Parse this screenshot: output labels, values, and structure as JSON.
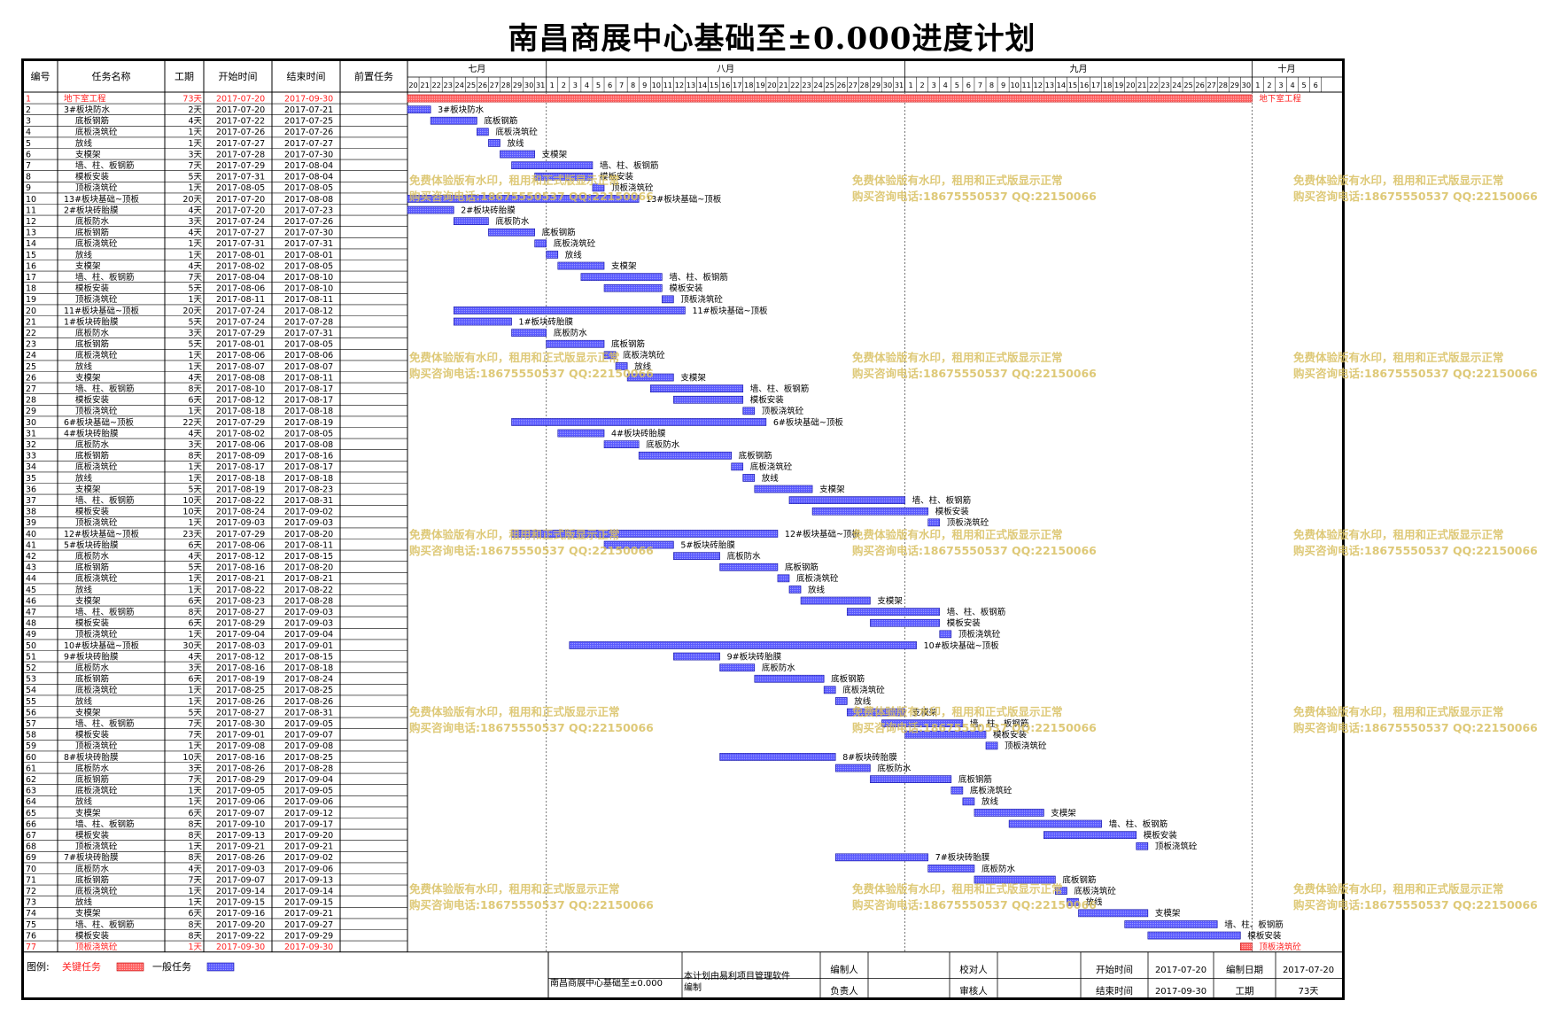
{
  "title": "南昌商展中心基础至±0.000进度计划",
  "columns": {
    "id": "编号",
    "name": "任务名称",
    "dur": "工期",
    "start": "开始时间",
    "end": "结束时间",
    "pred": "前置任务"
  },
  "months": [
    {
      "label": "七月",
      "start": "2017-07-20",
      "end": "2017-07-31"
    },
    {
      "label": "八月",
      "start": "2017-08-01",
      "end": "2017-08-31"
    },
    {
      "label": "九月",
      "start": "2017-09-01",
      "end": "2017-09-30"
    },
    {
      "label": "十月",
      "start": "2017-10-01",
      "end": "2017-10-06"
    }
  ],
  "watermark": [
    "免费体验版有水印，租用和正式版显示正常",
    "购买咨询电话:18675550537 QQ:22150066"
  ],
  "legend": {
    "label": "图例:",
    "critical": "关键任务",
    "normal": "一般任务",
    "critical_color": "#ff6060",
    "normal_color": "#5a5aff"
  },
  "footer": {
    "project": "南昌商展中心基础至±0.000",
    "note": "本计划由易利项目管理软件编制",
    "compiler": "编制人",
    "checker": "校对人",
    "owner": "负责人",
    "reviewer": "审核人",
    "start_label": "开始时间",
    "start": "2017-07-20",
    "end_label": "结束时间",
    "end": "2017-09-30",
    "date_label": "编制日期",
    "date": "2017-07-20",
    "dur_label": "工期",
    "dur": "73天"
  },
  "chart_data": {
    "type": "gantt",
    "x_range": [
      "2017-07-20",
      "2017-10-06"
    ],
    "tasks": [
      {
        "id": 1,
        "name": "地下室工程",
        "indent": 1,
        "dur": "73天",
        "start": "2017-07-20",
        "end": "2017-09-30",
        "critical": true
      },
      {
        "id": 2,
        "name": "3#板块防水",
        "indent": 2,
        "dur": "2天",
        "start": "2017-07-20",
        "end": "2017-07-21"
      },
      {
        "id": 3,
        "name": "底板钢筋",
        "indent": 3,
        "dur": "4天",
        "start": "2017-07-22",
        "end": "2017-07-25"
      },
      {
        "id": 4,
        "name": "底板浇筑砼",
        "indent": 3,
        "dur": "1天",
        "start": "2017-07-26",
        "end": "2017-07-26"
      },
      {
        "id": 5,
        "name": "放线",
        "indent": 3,
        "dur": "1天",
        "start": "2017-07-27",
        "end": "2017-07-27"
      },
      {
        "id": 6,
        "name": "支模架",
        "indent": 3,
        "dur": "3天",
        "start": "2017-07-28",
        "end": "2017-07-30"
      },
      {
        "id": 7,
        "name": "墙、柱、板钢筋",
        "indent": 3,
        "dur": "7天",
        "start": "2017-07-29",
        "end": "2017-08-04"
      },
      {
        "id": 8,
        "name": "模板安装",
        "indent": 3,
        "dur": "5天",
        "start": "2017-07-31",
        "end": "2017-08-04"
      },
      {
        "id": 9,
        "name": "顶板浇筑砼",
        "indent": 3,
        "dur": "1天",
        "start": "2017-08-05",
        "end": "2017-08-05"
      },
      {
        "id": 10,
        "name": "13#板块基础~顶板",
        "indent": 1,
        "dur": "20天",
        "start": "2017-07-20",
        "end": "2017-08-08"
      },
      {
        "id": 11,
        "name": "2#板块砖胎膜",
        "indent": 2,
        "dur": "4天",
        "start": "2017-07-20",
        "end": "2017-07-23"
      },
      {
        "id": 12,
        "name": "底板防水",
        "indent": 3,
        "dur": "3天",
        "start": "2017-07-24",
        "end": "2017-07-26"
      },
      {
        "id": 13,
        "name": "底板钢筋",
        "indent": 3,
        "dur": "4天",
        "start": "2017-07-27",
        "end": "2017-07-30"
      },
      {
        "id": 14,
        "name": "底板浇筑砼",
        "indent": 3,
        "dur": "1天",
        "start": "2017-07-31",
        "end": "2017-07-31"
      },
      {
        "id": 15,
        "name": "放线",
        "indent": 3,
        "dur": "1天",
        "start": "2017-08-01",
        "end": "2017-08-01"
      },
      {
        "id": 16,
        "name": "支模架",
        "indent": 3,
        "dur": "4天",
        "start": "2017-08-02",
        "end": "2017-08-05"
      },
      {
        "id": 17,
        "name": "墙、柱、板钢筋",
        "indent": 3,
        "dur": "7天",
        "start": "2017-08-04",
        "end": "2017-08-10"
      },
      {
        "id": 18,
        "name": "模板安装",
        "indent": 3,
        "dur": "5天",
        "start": "2017-08-06",
        "end": "2017-08-10"
      },
      {
        "id": 19,
        "name": "顶板浇筑砼",
        "indent": 3,
        "dur": "1天",
        "start": "2017-08-11",
        "end": "2017-08-11"
      },
      {
        "id": 20,
        "name": "11#板块基础~顶板",
        "indent": 1,
        "dur": "20天",
        "start": "2017-07-24",
        "end": "2017-08-12"
      },
      {
        "id": 21,
        "name": "1#板块砖胎膜",
        "indent": 2,
        "dur": "5天",
        "start": "2017-07-24",
        "end": "2017-07-28"
      },
      {
        "id": 22,
        "name": "底板防水",
        "indent": 3,
        "dur": "3天",
        "start": "2017-07-29",
        "end": "2017-07-31"
      },
      {
        "id": 23,
        "name": "底板钢筋",
        "indent": 3,
        "dur": "5天",
        "start": "2017-08-01",
        "end": "2017-08-05"
      },
      {
        "id": 24,
        "name": "底板浇筑砼",
        "indent": 3,
        "dur": "1天",
        "start": "2017-08-06",
        "end": "2017-08-06"
      },
      {
        "id": 25,
        "name": "放线",
        "indent": 3,
        "dur": "1天",
        "start": "2017-08-07",
        "end": "2017-08-07"
      },
      {
        "id": 26,
        "name": "支模架",
        "indent": 3,
        "dur": "4天",
        "start": "2017-08-08",
        "end": "2017-08-11"
      },
      {
        "id": 27,
        "name": "墙、柱、板钢筋",
        "indent": 3,
        "dur": "8天",
        "start": "2017-08-10",
        "end": "2017-08-17"
      },
      {
        "id": 28,
        "name": "模板安装",
        "indent": 3,
        "dur": "6天",
        "start": "2017-08-12",
        "end": "2017-08-17"
      },
      {
        "id": 29,
        "name": "顶板浇筑砼",
        "indent": 3,
        "dur": "1天",
        "start": "2017-08-18",
        "end": "2017-08-18"
      },
      {
        "id": 30,
        "name": "6#板块基础~顶板",
        "indent": 1,
        "dur": "22天",
        "start": "2017-07-29",
        "end": "2017-08-19"
      },
      {
        "id": 31,
        "name": "4#板块砖胎膜",
        "indent": 2,
        "dur": "4天",
        "start": "2017-08-02",
        "end": "2017-08-05"
      },
      {
        "id": 32,
        "name": "底板防水",
        "indent": 3,
        "dur": "3天",
        "start": "2017-08-06",
        "end": "2017-08-08"
      },
      {
        "id": 33,
        "name": "底板钢筋",
        "indent": 3,
        "dur": "8天",
        "start": "2017-08-09",
        "end": "2017-08-16"
      },
      {
        "id": 34,
        "name": "底板浇筑砼",
        "indent": 3,
        "dur": "1天",
        "start": "2017-08-17",
        "end": "2017-08-17"
      },
      {
        "id": 35,
        "name": "放线",
        "indent": 3,
        "dur": "1天",
        "start": "2017-08-18",
        "end": "2017-08-18"
      },
      {
        "id": 36,
        "name": "支模架",
        "indent": 3,
        "dur": "5天",
        "start": "2017-08-19",
        "end": "2017-08-23"
      },
      {
        "id": 37,
        "name": "墙、柱、板钢筋",
        "indent": 3,
        "dur": "10天",
        "start": "2017-08-22",
        "end": "2017-08-31"
      },
      {
        "id": 38,
        "name": "模板安装",
        "indent": 3,
        "dur": "10天",
        "start": "2017-08-24",
        "end": "2017-09-02"
      },
      {
        "id": 39,
        "name": "顶板浇筑砼",
        "indent": 3,
        "dur": "1天",
        "start": "2017-09-03",
        "end": "2017-09-03"
      },
      {
        "id": 40,
        "name": "12#板块基础~顶板",
        "indent": 1,
        "dur": "23天",
        "start": "2017-07-29",
        "end": "2017-08-20"
      },
      {
        "id": 41,
        "name": "5#板块砖胎膜",
        "indent": 2,
        "dur": "6天",
        "start": "2017-08-06",
        "end": "2017-08-11"
      },
      {
        "id": 42,
        "name": "底板防水",
        "indent": 3,
        "dur": "4天",
        "start": "2017-08-12",
        "end": "2017-08-15"
      },
      {
        "id": 43,
        "name": "底板钢筋",
        "indent": 3,
        "dur": "5天",
        "start": "2017-08-16",
        "end": "2017-08-20"
      },
      {
        "id": 44,
        "name": "底板浇筑砼",
        "indent": 3,
        "dur": "1天",
        "start": "2017-08-21",
        "end": "2017-08-21"
      },
      {
        "id": 45,
        "name": "放线",
        "indent": 3,
        "dur": "1天",
        "start": "2017-08-22",
        "end": "2017-08-22"
      },
      {
        "id": 46,
        "name": "支模架",
        "indent": 3,
        "dur": "6天",
        "start": "2017-08-23",
        "end": "2017-08-28"
      },
      {
        "id": 47,
        "name": "墙、柱、板钢筋",
        "indent": 3,
        "dur": "8天",
        "start": "2017-08-27",
        "end": "2017-09-03"
      },
      {
        "id": 48,
        "name": "模板安装",
        "indent": 3,
        "dur": "6天",
        "start": "2017-08-29",
        "end": "2017-09-03"
      },
      {
        "id": 49,
        "name": "顶板浇筑砼",
        "indent": 3,
        "dur": "1天",
        "start": "2017-09-04",
        "end": "2017-09-04"
      },
      {
        "id": 50,
        "name": "10#板块基础~顶板",
        "indent": 1,
        "dur": "30天",
        "start": "2017-08-03",
        "end": "2017-09-01"
      },
      {
        "id": 51,
        "name": "9#板块砖胎膜",
        "indent": 2,
        "dur": "4天",
        "start": "2017-08-12",
        "end": "2017-08-15"
      },
      {
        "id": 52,
        "name": "底板防水",
        "indent": 3,
        "dur": "3天",
        "start": "2017-08-16",
        "end": "2017-08-18"
      },
      {
        "id": 53,
        "name": "底板钢筋",
        "indent": 3,
        "dur": "6天",
        "start": "2017-08-19",
        "end": "2017-08-24"
      },
      {
        "id": 54,
        "name": "底板浇筑砼",
        "indent": 3,
        "dur": "1天",
        "start": "2017-08-25",
        "end": "2017-08-25"
      },
      {
        "id": 55,
        "name": "放线",
        "indent": 3,
        "dur": "1天",
        "start": "2017-08-26",
        "end": "2017-08-26"
      },
      {
        "id": 56,
        "name": "支模架",
        "indent": 3,
        "dur": "5天",
        "start": "2017-08-27",
        "end": "2017-08-31"
      },
      {
        "id": 57,
        "name": "墙、柱、板钢筋",
        "indent": 3,
        "dur": "7天",
        "start": "2017-08-30",
        "end": "2017-09-05"
      },
      {
        "id": 58,
        "name": "模板安装",
        "indent": 3,
        "dur": "7天",
        "start": "2017-09-01",
        "end": "2017-09-07"
      },
      {
        "id": 59,
        "name": "顶板浇筑砼",
        "indent": 3,
        "dur": "1天",
        "start": "2017-09-08",
        "end": "2017-09-08"
      },
      {
        "id": 60,
        "name": "8#板块砖胎膜",
        "indent": 2,
        "dur": "10天",
        "start": "2017-08-16",
        "end": "2017-08-25"
      },
      {
        "id": 61,
        "name": "底板防水",
        "indent": 3,
        "dur": "3天",
        "start": "2017-08-26",
        "end": "2017-08-28"
      },
      {
        "id": 62,
        "name": "底板钢筋",
        "indent": 3,
        "dur": "7天",
        "start": "2017-08-29",
        "end": "2017-09-04"
      },
      {
        "id": 63,
        "name": "底板浇筑砼",
        "indent": 3,
        "dur": "1天",
        "start": "2017-09-05",
        "end": "2017-09-05"
      },
      {
        "id": 64,
        "name": "放线",
        "indent": 3,
        "dur": "1天",
        "start": "2017-09-06",
        "end": "2017-09-06"
      },
      {
        "id": 65,
        "name": "支模架",
        "indent": 3,
        "dur": "6天",
        "start": "2017-09-07",
        "end": "2017-09-12"
      },
      {
        "id": 66,
        "name": "墙、柱、板钢筋",
        "indent": 3,
        "dur": "8天",
        "start": "2017-09-10",
        "end": "2017-09-17"
      },
      {
        "id": 67,
        "name": "模板安装",
        "indent": 3,
        "dur": "8天",
        "start": "2017-09-13",
        "end": "2017-09-20"
      },
      {
        "id": 68,
        "name": "顶板浇筑砼",
        "indent": 3,
        "dur": "1天",
        "start": "2017-09-21",
        "end": "2017-09-21"
      },
      {
        "id": 69,
        "name": "7#板块砖胎膜",
        "indent": 2,
        "dur": "8天",
        "start": "2017-08-26",
        "end": "2017-09-02"
      },
      {
        "id": 70,
        "name": "底板防水",
        "indent": 3,
        "dur": "4天",
        "start": "2017-09-03",
        "end": "2017-09-06"
      },
      {
        "id": 71,
        "name": "底板钢筋",
        "indent": 3,
        "dur": "7天",
        "start": "2017-09-07",
        "end": "2017-09-13"
      },
      {
        "id": 72,
        "name": "底板浇筑砼",
        "indent": 3,
        "dur": "1天",
        "start": "2017-09-14",
        "end": "2017-09-14"
      },
      {
        "id": 73,
        "name": "放线",
        "indent": 3,
        "dur": "1天",
        "start": "2017-09-15",
        "end": "2017-09-15"
      },
      {
        "id": 74,
        "name": "支模架",
        "indent": 3,
        "dur": "6天",
        "start": "2017-09-16",
        "end": "2017-09-21"
      },
      {
        "id": 75,
        "name": "墙、柱、板钢筋",
        "indent": 3,
        "dur": "8天",
        "start": "2017-09-20",
        "end": "2017-09-27"
      },
      {
        "id": 76,
        "name": "模板安装",
        "indent": 3,
        "dur": "8天",
        "start": "2017-09-22",
        "end": "2017-09-29"
      },
      {
        "id": 77,
        "name": "顶板浇筑砼",
        "indent": 3,
        "dur": "1天",
        "start": "2017-09-30",
        "end": "2017-09-30",
        "critical": true
      }
    ]
  }
}
